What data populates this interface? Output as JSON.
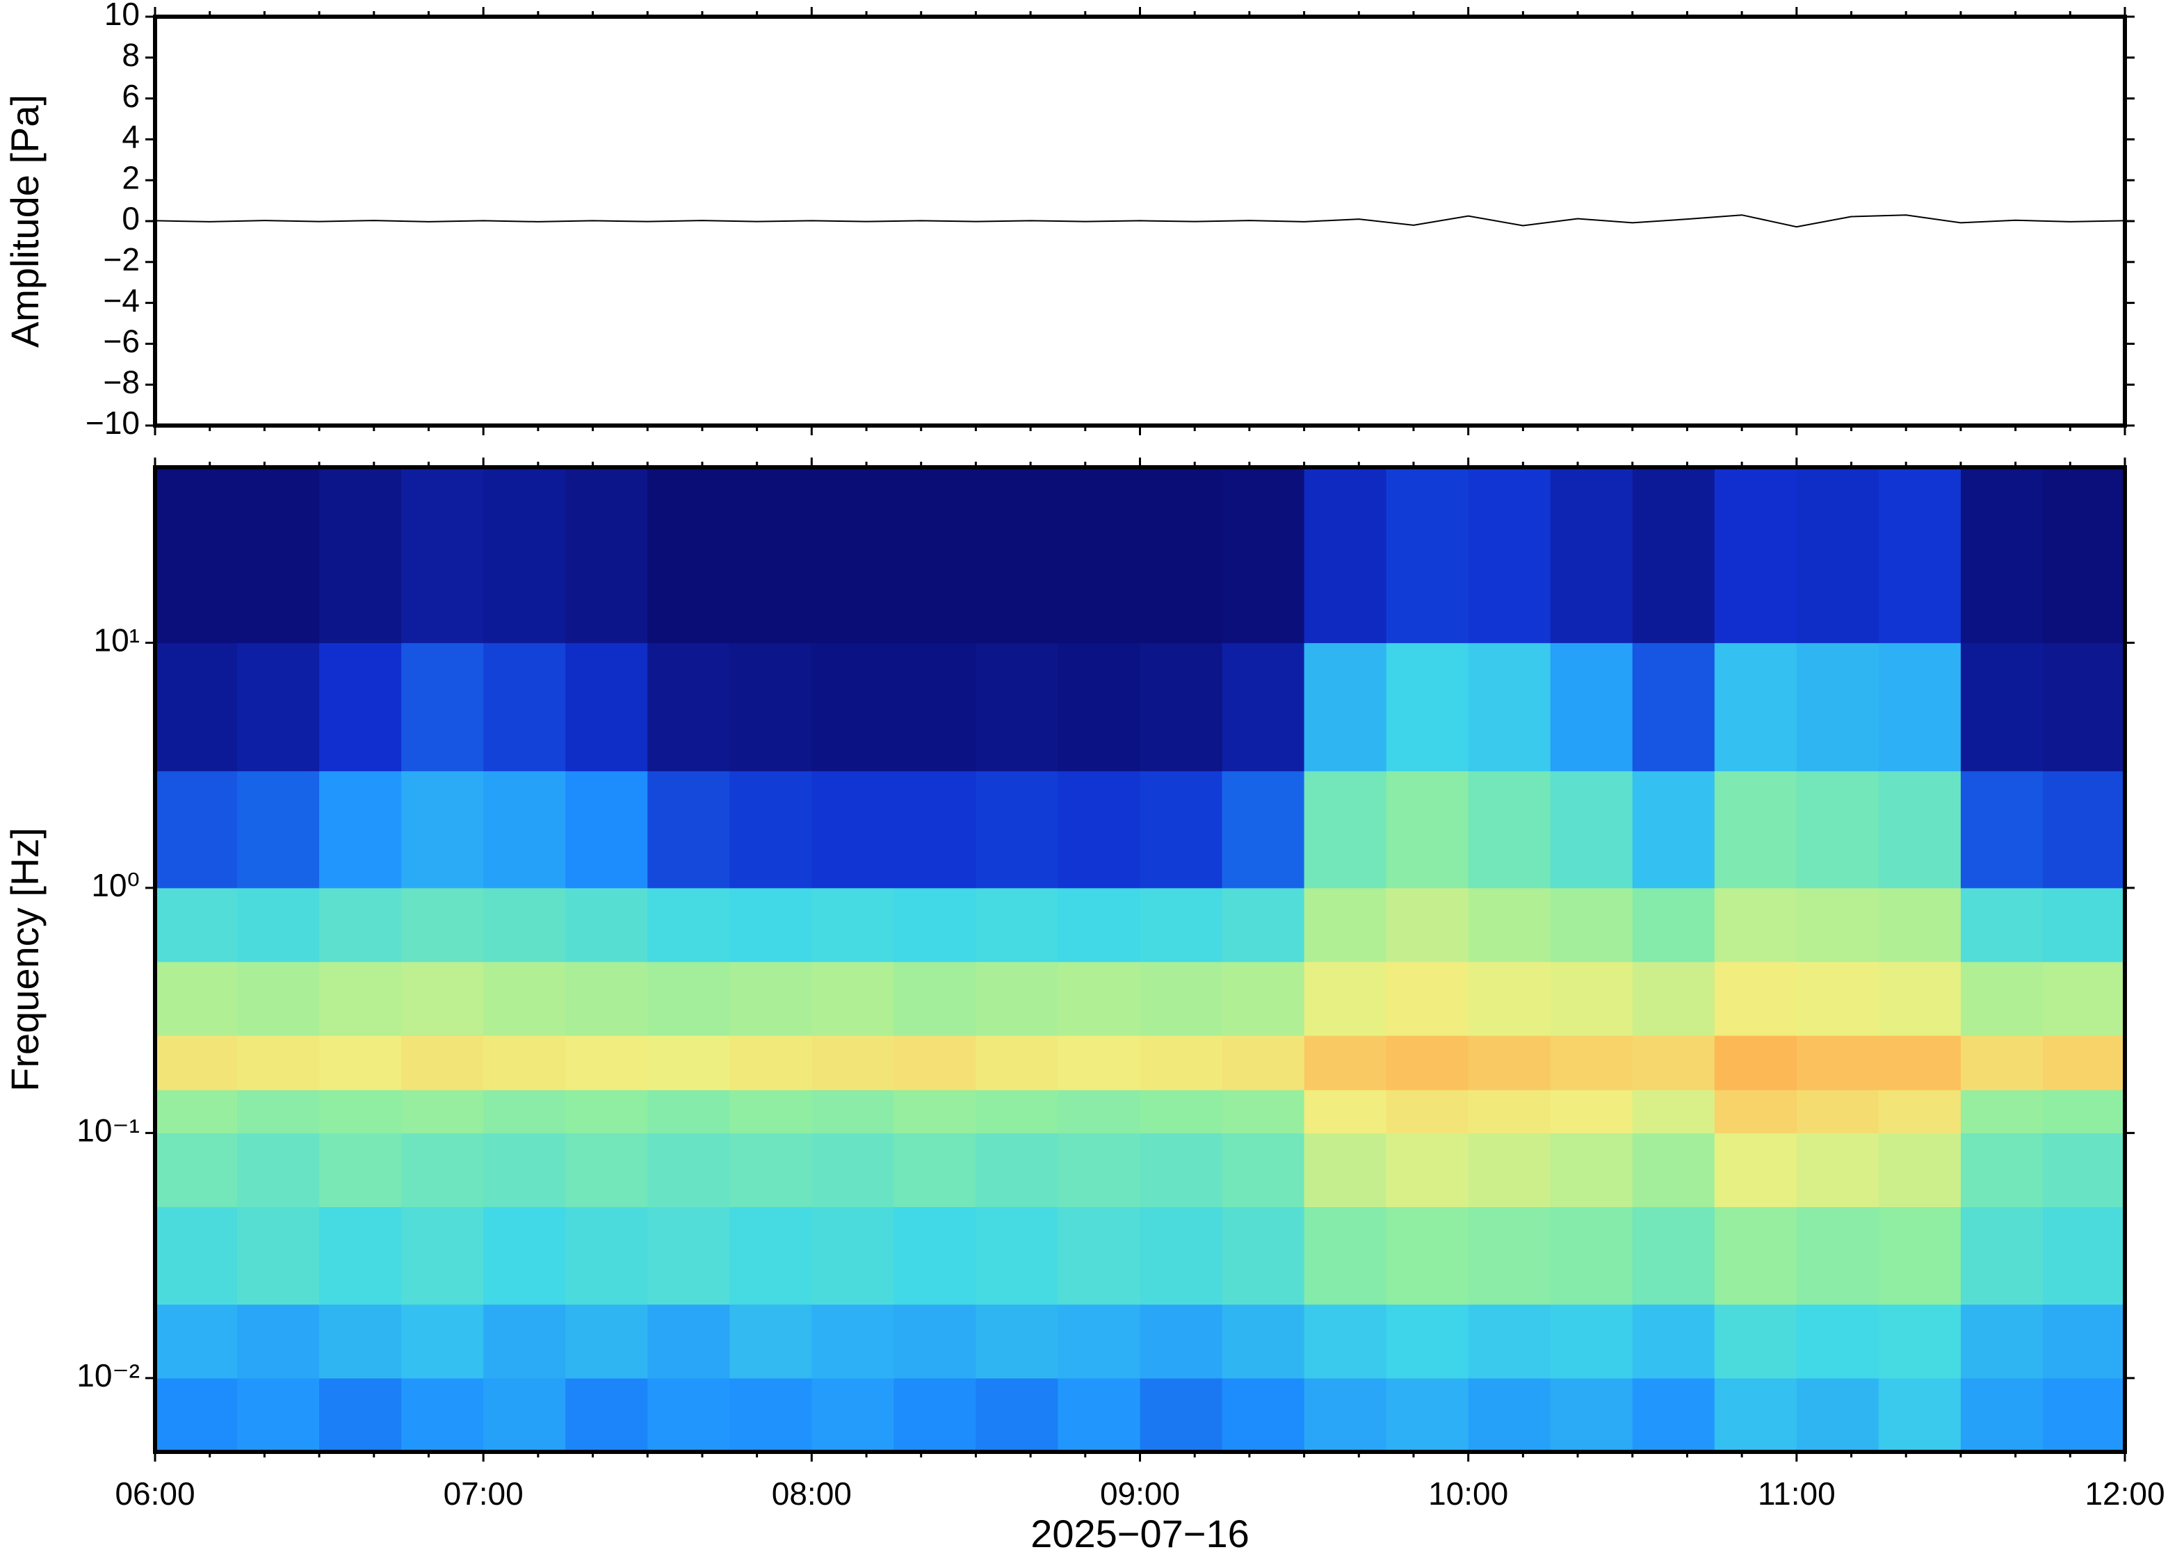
{
  "chart_data": [
    {
      "type": "line",
      "ylabel": "Amplitude [Pa]",
      "color": "#000000",
      "xlim": [
        6,
        12
      ],
      "xticks": [
        6,
        7,
        8,
        9,
        10,
        11,
        12
      ],
      "ylim": [
        -10,
        10
      ],
      "yticks": [
        {
          "value": -10,
          "label": "−10"
        },
        {
          "value": -8,
          "label": "−8"
        },
        {
          "value": -6,
          "label": "−6"
        },
        {
          "value": -4,
          "label": "−4"
        },
        {
          "value": -2,
          "label": "−2"
        },
        0,
        2,
        4,
        6,
        8,
        10
      ],
      "x": [
        6,
        6.1667,
        6.3333,
        6.5,
        6.6667,
        6.8333,
        7,
        7.1667,
        7.3333,
        7.5,
        7.6667,
        7.8333,
        8,
        8.1667,
        8.3333,
        8.5,
        8.6667,
        8.8333,
        9,
        9.1667,
        9.3333,
        9.5,
        9.6667,
        9.8333,
        10,
        10.1667,
        10.3333,
        10.5,
        10.6667,
        10.8333,
        11,
        11.1667,
        11.3333,
        11.5,
        11.6667,
        11.8333,
        12
      ],
      "values": [
        0.02,
        -0.03,
        0.03,
        -0.02,
        0.03,
        -0.03,
        0.02,
        -0.03,
        0.02,
        -0.02,
        0.03,
        -0.02,
        0.02,
        -0.02,
        0.02,
        -0.02,
        0.02,
        -0.02,
        0.02,
        -0.02,
        0.03,
        -0.03,
        0.1,
        -0.2,
        0.25,
        -0.22,
        0.12,
        -0.08,
        0.1,
        0.3,
        -0.28,
        0.22,
        0.3,
        -0.08,
        0.04,
        -0.03,
        0.02
      ]
    },
    {
      "type": "spectrogram",
      "ylabel": "Frequency [Hz]",
      "xlabel": "2025−07−16",
      "log_y": true,
      "xlim": [
        6,
        12
      ],
      "xticks": [
        {
          "value": 6,
          "label": "06:00"
        },
        {
          "value": 7,
          "label": "07:00"
        },
        {
          "value": 8,
          "label": "08:00"
        },
        {
          "value": 9,
          "label": "09:00"
        },
        {
          "value": 10,
          "label": "10:00"
        },
        {
          "value": 11,
          "label": "11:00"
        },
        {
          "value": 12,
          "label": "12:00"
        }
      ],
      "xminorticks": [
        6.1667,
        6.3333,
        6.5,
        6.6667,
        6.8333,
        7.1667,
        7.3333,
        7.5,
        7.6667,
        7.8333,
        8.1667,
        8.3333,
        8.5,
        8.6667,
        8.8333,
        9.1667,
        9.3333,
        9.5,
        9.6667,
        9.8333,
        10.1667,
        10.3333,
        10.5,
        10.6667,
        10.8333,
        11.1667,
        11.3333,
        11.5,
        11.6667,
        11.8333
      ],
      "ylim": [
        0.005,
        52
      ],
      "yticks": [
        {
          "value": 0.01,
          "label": "10⁻²"
        },
        {
          "value": 0.1,
          "label": "10⁻¹"
        },
        {
          "value": 1,
          "label": "10⁰"
        },
        {
          "value": 10,
          "label": "10¹"
        }
      ],
      "x_edges": [
        6,
        6.25,
        6.5,
        6.75,
        7,
        7.25,
        7.5,
        7.75,
        8,
        8.25,
        8.5,
        8.75,
        9,
        9.25,
        9.5,
        9.75,
        10,
        10.25,
        10.5,
        10.75,
        11,
        11.25,
        11.5,
        11.75,
        12
      ],
      "y_edges": [
        0.005,
        0.01,
        0.02,
        0.05,
        0.1,
        0.15,
        0.25,
        0.5,
        1,
        3,
        10,
        52
      ],
      "clim": [
        0,
        1
      ],
      "colormap": [
        "#0a0a6e",
        "#1030d0",
        "#1e90ff",
        "#40d8e8",
        "#90eea0",
        "#f0f080",
        "#ffb050",
        "#e84020"
      ],
      "values": [
        [
          0.28,
          0.3,
          0.26,
          0.3,
          0.32,
          0.27,
          0.3,
          0.29,
          0.31,
          0.28,
          0.26,
          0.3,
          0.25,
          0.28,
          0.33,
          0.35,
          0.32,
          0.34,
          0.3,
          0.38,
          0.36,
          0.4,
          0.32,
          0.3
        ],
        [
          0.35,
          0.33,
          0.36,
          0.38,
          0.34,
          0.36,
          0.33,
          0.37,
          0.35,
          0.34,
          0.36,
          0.35,
          0.33,
          0.36,
          0.4,
          0.42,
          0.4,
          0.41,
          0.38,
          0.45,
          0.43,
          0.44,
          0.36,
          0.34
        ],
        [
          0.45,
          0.47,
          0.44,
          0.46,
          0.43,
          0.45,
          0.46,
          0.44,
          0.45,
          0.43,
          0.44,
          0.46,
          0.45,
          0.47,
          0.55,
          0.57,
          0.56,
          0.55,
          0.52,
          0.58,
          0.56,
          0.57,
          0.47,
          0.45
        ],
        [
          0.52,
          0.5,
          0.53,
          0.51,
          0.5,
          0.52,
          0.5,
          0.51,
          0.5,
          0.52,
          0.5,
          0.51,
          0.5,
          0.52,
          0.65,
          0.68,
          0.66,
          0.64,
          0.6,
          0.7,
          0.68,
          0.66,
          0.52,
          0.5
        ],
        [
          0.58,
          0.56,
          0.57,
          0.58,
          0.56,
          0.57,
          0.55,
          0.57,
          0.56,
          0.58,
          0.57,
          0.56,
          0.57,
          0.58,
          0.72,
          0.74,
          0.73,
          0.72,
          0.68,
          0.78,
          0.76,
          0.74,
          0.58,
          0.57
        ],
        [
          0.74,
          0.73,
          0.72,
          0.74,
          0.73,
          0.72,
          0.71,
          0.73,
          0.74,
          0.75,
          0.73,
          0.72,
          0.73,
          0.74,
          0.8,
          0.82,
          0.8,
          0.78,
          0.77,
          0.84,
          0.82,
          0.82,
          0.76,
          0.78
        ],
        [
          0.62,
          0.61,
          0.63,
          0.64,
          0.62,
          0.61,
          0.6,
          0.61,
          0.62,
          0.6,
          0.61,
          0.62,
          0.61,
          0.62,
          0.7,
          0.72,
          0.7,
          0.69,
          0.66,
          0.72,
          0.71,
          0.7,
          0.62,
          0.63
        ],
        [
          0.46,
          0.45,
          0.48,
          0.5,
          0.49,
          0.47,
          0.44,
          0.43,
          0.44,
          0.43,
          0.44,
          0.43,
          0.44,
          0.46,
          0.62,
          0.65,
          0.62,
          0.6,
          0.55,
          0.64,
          0.63,
          0.62,
          0.46,
          0.45
        ],
        [
          0.2,
          0.22,
          0.3,
          0.34,
          0.32,
          0.28,
          0.18,
          0.16,
          0.15,
          0.15,
          0.16,
          0.15,
          0.16,
          0.22,
          0.52,
          0.56,
          0.52,
          0.48,
          0.38,
          0.54,
          0.52,
          0.5,
          0.2,
          0.18
        ],
        [
          0.06,
          0.08,
          0.14,
          0.2,
          0.17,
          0.13,
          0.05,
          0.04,
          0.03,
          0.03,
          0.04,
          0.03,
          0.04,
          0.08,
          0.36,
          0.42,
          0.4,
          0.32,
          0.2,
          0.38,
          0.36,
          0.35,
          0.06,
          0.05
        ],
        [
          0.02,
          0.02,
          0.04,
          0.07,
          0.06,
          0.04,
          0.01,
          0.01,
          0.01,
          0.01,
          0.01,
          0.01,
          0.01,
          0.02,
          0.12,
          0.16,
          0.15,
          0.1,
          0.06,
          0.14,
          0.13,
          0.15,
          0.03,
          0.02
        ]
      ]
    }
  ]
}
